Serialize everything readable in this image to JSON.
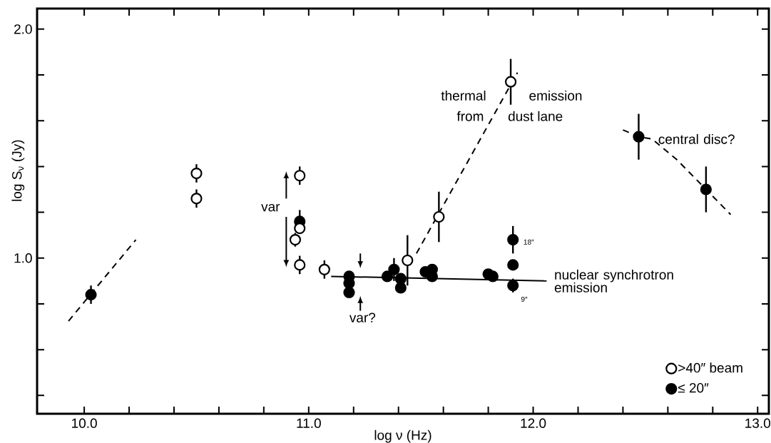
{
  "chart_data": {
    "type": "scatter",
    "xlabel": "log ν (Hz)",
    "ylabel": "log S$_{ν}$ (Jy)",
    "xlim": [
      9.79,
      13.05
    ],
    "ylim": [
      0.32,
      2.09
    ],
    "xticks": [
      {
        "value": 10.0,
        "label": "10.0"
      },
      {
        "value": 10.2,
        "label": null
      },
      {
        "value": 10.4,
        "label": null
      },
      {
        "value": 10.6,
        "label": null
      },
      {
        "value": 10.8,
        "label": null
      },
      {
        "value": 11.0,
        "label": "11.0"
      },
      {
        "value": 11.2,
        "label": null
      },
      {
        "value": 11.4,
        "label": null
      },
      {
        "value": 11.6,
        "label": null
      },
      {
        "value": 11.8,
        "label": null
      },
      {
        "value": 12.0,
        "label": "12.0"
      },
      {
        "value": 12.2,
        "label": null
      },
      {
        "value": 12.4,
        "label": null
      },
      {
        "value": 12.6,
        "label": null
      },
      {
        "value": 12.8,
        "label": null
      },
      {
        "value": 13.0,
        "label": "13.0"
      }
    ],
    "yticks": [
      {
        "value": 0.4,
        "label": null
      },
      {
        "value": 0.6,
        "label": null
      },
      {
        "value": 0.8,
        "label": null
      },
      {
        "value": 1.0,
        "label": "1.0"
      },
      {
        "value": 1.2,
        "label": null
      },
      {
        "value": 1.4,
        "label": null
      },
      {
        "value": 1.6,
        "label": null
      },
      {
        "value": 1.8,
        "label": null
      },
      {
        "value": 2.0,
        "label": "2.0"
      }
    ],
    "legend": "bottom right",
    "series": [
      {
        "name": "≤ 20″",
        "color": "#000000",
        "marker": "circle",
        "x": [
          10.03,
          10.96,
          11.18,
          11.18,
          11.18,
          11.35,
          11.38,
          11.41,
          11.41,
          11.52,
          11.55,
          11.55,
          11.8,
          11.82,
          11.91,
          11.91,
          11.91,
          12.47,
          12.77
        ],
        "values": [
          0.84,
          1.16,
          0.92,
          0.89,
          0.85,
          0.92,
          0.95,
          0.91,
          0.87,
          0.94,
          0.95,
          0.92,
          0.93,
          0.92,
          1.08,
          0.97,
          0.88,
          1.53,
          1.3
        ],
        "errors": [
          0.04,
          0.05,
          null,
          null,
          null,
          null,
          0.05,
          null,
          null,
          null,
          null,
          null,
          null,
          null,
          0.06,
          null,
          0.03,
          0.1,
          0.1
        ]
      },
      {
        "name": ">40″ beam",
        "color": "#ffffff",
        "marker": "circle",
        "x": [
          10.5,
          10.5,
          10.96,
          10.96,
          10.94,
          10.96,
          11.07,
          11.44,
          11.58,
          11.9
        ],
        "values": [
          1.37,
          1.26,
          1.36,
          1.13,
          1.08,
          0.97,
          0.95,
          0.99,
          1.18,
          1.77
        ],
        "errors": [
          0.04,
          0.04,
          0.04,
          null,
          0.03,
          0.04,
          0.04,
          0.11,
          0.11,
          0.1
        ]
      },
      {
        "type": "line",
        "color": "#000000",
        "line_style": "dashed",
        "marker": "none",
        "x": [
          9.93,
          10.23
        ],
        "values": [
          0.725,
          1.08
        ]
      },
      {
        "type": "line",
        "color": "#000000",
        "line_style": "solid",
        "marker": "none",
        "x": [
          11.1,
          12.06
        ],
        "values": [
          0.92,
          0.9
        ]
      },
      {
        "type": "line",
        "color": "#000000",
        "line_style": "dashed",
        "marker": "none",
        "x": [
          11.48,
          11.93
        ],
        "values": [
          1.02,
          1.81
        ]
      },
      {
        "type": "line",
        "color": "#000000",
        "line_style": "dashed",
        "marker": "none",
        "x": [
          12.4,
          12.47,
          12.53,
          12.64,
          12.77,
          12.88
        ],
        "values": [
          1.56,
          1.53,
          1.52,
          1.43,
          1.3,
          1.19
        ]
      }
    ],
    "annotations": [
      "thermal",
      "emission",
      "from",
      "dust lane",
      "central disc?",
      "nuclear synchrotron emission",
      "var",
      "var?",
      "18″",
      "9″"
    ]
  }
}
